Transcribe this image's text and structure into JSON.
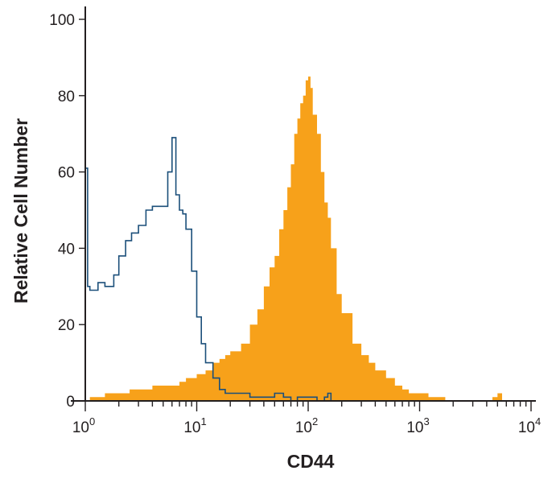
{
  "chart_data": {
    "type": "area",
    "title": "",
    "xlabel": "CD44",
    "ylabel": "Relative Cell Number",
    "xscale": "log",
    "xlim": [
      1,
      10000
    ],
    "ylim": [
      0,
      100
    ],
    "grid": false,
    "legend": "none",
    "x_ticks": [
      {
        "value": 1,
        "base": "10",
        "exp": "0"
      },
      {
        "value": 10,
        "base": "10",
        "exp": "1"
      },
      {
        "value": 100,
        "base": "10",
        "exp": "2"
      },
      {
        "value": 1000,
        "base": "10",
        "exp": "3"
      },
      {
        "value": 10000,
        "base": "10",
        "exp": "4"
      }
    ],
    "y_ticks": [
      0,
      20,
      40,
      60,
      80,
      100
    ],
    "colors": {
      "filled": "#f7a11a",
      "outline": "#1b4f7a",
      "axis": "#231f20"
    },
    "series": [
      {
        "style": "filled",
        "x": [
          1.1,
          1.5,
          2,
          2.5,
          3,
          4,
          5,
          6,
          7,
          8,
          9,
          10,
          12,
          14,
          16,
          18,
          20,
          25,
          30,
          35,
          40,
          45,
          50,
          55,
          60,
          65,
          70,
          75,
          80,
          85,
          90,
          95,
          100,
          105,
          110,
          120,
          130,
          140,
          150,
          160,
          180,
          200,
          250,
          300,
          350,
          400,
          500,
          600,
          700,
          800,
          1000,
          1200,
          1500,
          1700,
          4500,
          5000,
          5500
        ],
        "values": [
          1,
          2,
          2,
          3,
          3,
          4,
          4,
          4,
          5,
          6,
          6,
          7,
          8,
          10,
          11,
          12,
          13,
          15,
          20,
          24,
          30,
          35,
          38,
          45,
          50,
          56,
          62,
          70,
          74,
          78,
          80,
          84,
          85,
          82,
          75,
          70,
          60,
          52,
          48,
          40,
          28,
          23,
          15,
          12,
          10,
          8,
          6,
          4,
          3,
          2,
          2,
          1,
          1,
          0,
          1,
          2,
          1
        ]
      },
      {
        "style": "outline",
        "x": [
          1,
          1.05,
          1.1,
          1.3,
          1.5,
          1.8,
          2,
          2.3,
          2.6,
          3,
          3.5,
          4,
          4.5,
          5,
          5.5,
          6,
          6.5,
          7,
          7.5,
          8,
          9,
          10,
          11,
          12,
          14,
          16,
          18,
          20,
          25,
          30,
          40,
          50,
          60,
          70,
          80,
          100,
          120,
          140,
          150,
          160
        ],
        "values": [
          61,
          30,
          29,
          31,
          30,
          33,
          38,
          42,
          44,
          46,
          50,
          51,
          51,
          51,
          60,
          69,
          54,
          50,
          49,
          45,
          34,
          22,
          15,
          10,
          6,
          3,
          2,
          2,
          2,
          1,
          1,
          2,
          1,
          0,
          1,
          1,
          0,
          1,
          2,
          0
        ]
      }
    ]
  }
}
